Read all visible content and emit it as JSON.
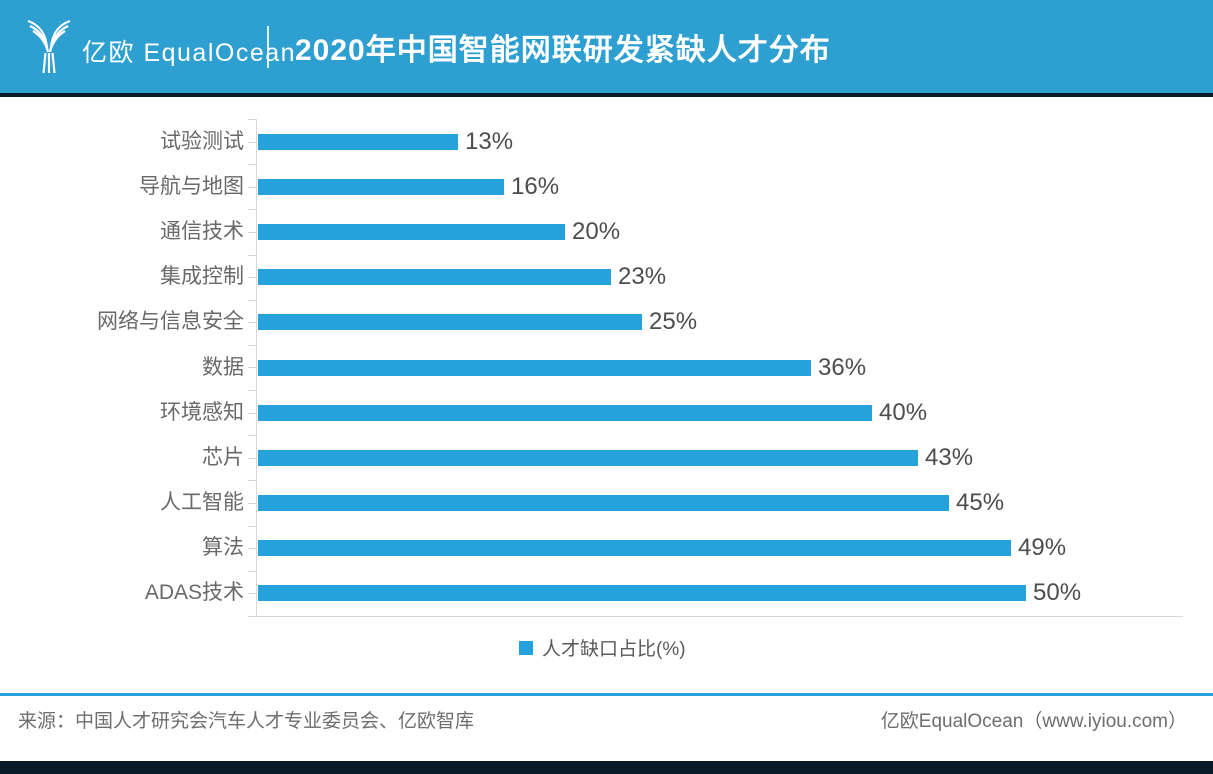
{
  "header": {
    "logo_text": "亿欧 EqualOcean",
    "title": "2020年中国智能网联研发紧缺人才分布"
  },
  "chart_data": {
    "type": "bar",
    "orientation": "horizontal",
    "title": "2020年中国智能网联研发紧缺人才分布",
    "categories": [
      "试验测试",
      "导航与地图",
      "通信技术",
      "集成控制",
      "网络与信息安全",
      "数据",
      "环境感知",
      "芯片",
      "人工智能",
      "算法",
      "ADAS技术"
    ],
    "values": [
      13,
      16,
      20,
      23,
      25,
      36,
      40,
      43,
      45,
      49,
      50
    ],
    "value_suffix": "%",
    "series_name": "人才缺口占比(%)",
    "xlabel": "",
    "ylabel": "",
    "xlim": [
      0,
      57
    ],
    "grid": false,
    "legend_position": "bottom"
  },
  "legend": {
    "label": "人才缺口占比(%)"
  },
  "footer": {
    "source": "来源：中国人才研究会汽车人才专业委员会、亿欧智库",
    "brand": "亿欧EqualOcean（www.iyiou.com）"
  },
  "colors": {
    "header_bg": "#2D9FD1",
    "accent_blue": "#25A2DB",
    "dark_navy": "#0A1A26",
    "axis_gray": "#D8D8D8",
    "category_text": "#696969",
    "value_text": "#4D4D4D",
    "footer_text": "#6E6E6E"
  }
}
